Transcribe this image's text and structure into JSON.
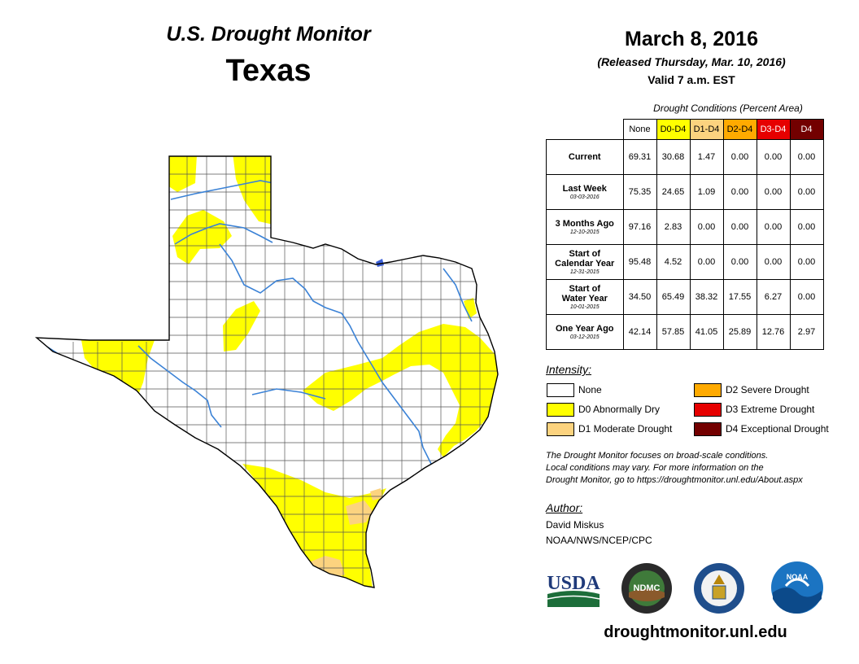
{
  "title": {
    "line1": "U.S. Drought Monitor",
    "line2": "Texas"
  },
  "date": "March 8, 2016",
  "released": "(Released Thursday, Mar. 10, 2016)",
  "valid": "Valid 7 a.m. EST",
  "table": {
    "caption": "Drought Conditions (Percent Area)",
    "headers": [
      "None",
      "D0-D4",
      "D1-D4",
      "D2-D4",
      "D3-D4",
      "D4"
    ],
    "header_colors": [
      "#ffffff",
      "#ffff00",
      "#fcd37f",
      "#ffaa00",
      "#e60000",
      "#730000"
    ],
    "rows": [
      {
        "label": "Current",
        "label2": "",
        "date": "",
        "values": [
          "69.31",
          "30.68",
          "1.47",
          "0.00",
          "0.00",
          "0.00"
        ]
      },
      {
        "label": "Last Week",
        "label2": "",
        "date": "03-03-2016",
        "values": [
          "75.35",
          "24.65",
          "1.09",
          "0.00",
          "0.00",
          "0.00"
        ]
      },
      {
        "label": "3 Months Ago",
        "label2": "",
        "date": "12-10-2015",
        "values": [
          "97.16",
          "2.83",
          "0.00",
          "0.00",
          "0.00",
          "0.00"
        ]
      },
      {
        "label": "Start of",
        "label2": "Calendar Year",
        "date": "12-31-2015",
        "values": [
          "95.48",
          "4.52",
          "0.00",
          "0.00",
          "0.00",
          "0.00"
        ]
      },
      {
        "label": "Start of",
        "label2": "Water Year",
        "date": "10-01-2015",
        "values": [
          "34.50",
          "65.49",
          "38.32",
          "17.55",
          "6.27",
          "0.00"
        ]
      },
      {
        "label": "One Year Ago",
        "label2": "",
        "date": "03-12-2015",
        "values": [
          "42.14",
          "57.85",
          "41.05",
          "25.89",
          "12.76",
          "2.97"
        ]
      }
    ]
  },
  "legend": {
    "title": "Intensity:",
    "items": [
      {
        "label": "None",
        "color": "#ffffff"
      },
      {
        "label": "D0 Abnormally Dry",
        "color": "#ffff00"
      },
      {
        "label": "D1 Moderate Drought",
        "color": "#fcd37f"
      },
      {
        "label": "D2 Severe Drought",
        "color": "#ffaa00"
      },
      {
        "label": "D3 Extreme Drought",
        "color": "#e60000"
      },
      {
        "label": "D4 Exceptional Drought",
        "color": "#730000"
      }
    ]
  },
  "note": {
    "line1": "The Drought Monitor focuses on broad-scale conditions.",
    "line2": "Local conditions may vary. For more information on the",
    "line3": "Drought Monitor, go to https://droughtmonitor.unl.edu/About.aspx"
  },
  "author": {
    "label": "Author:",
    "name": "David Miskus",
    "org": "NOAA/NWS/NCEP/CPC"
  },
  "logos": {
    "usda": "USDA",
    "ndmc": "NDMC",
    "noaa": "NOAA"
  },
  "website": "droughtmonitor.unl.edu",
  "colors": {
    "d0": "#ffff00",
    "d1": "#fcd37f",
    "county_line": "#555555",
    "river": "#3b82d6",
    "state_outline": "#000000"
  }
}
